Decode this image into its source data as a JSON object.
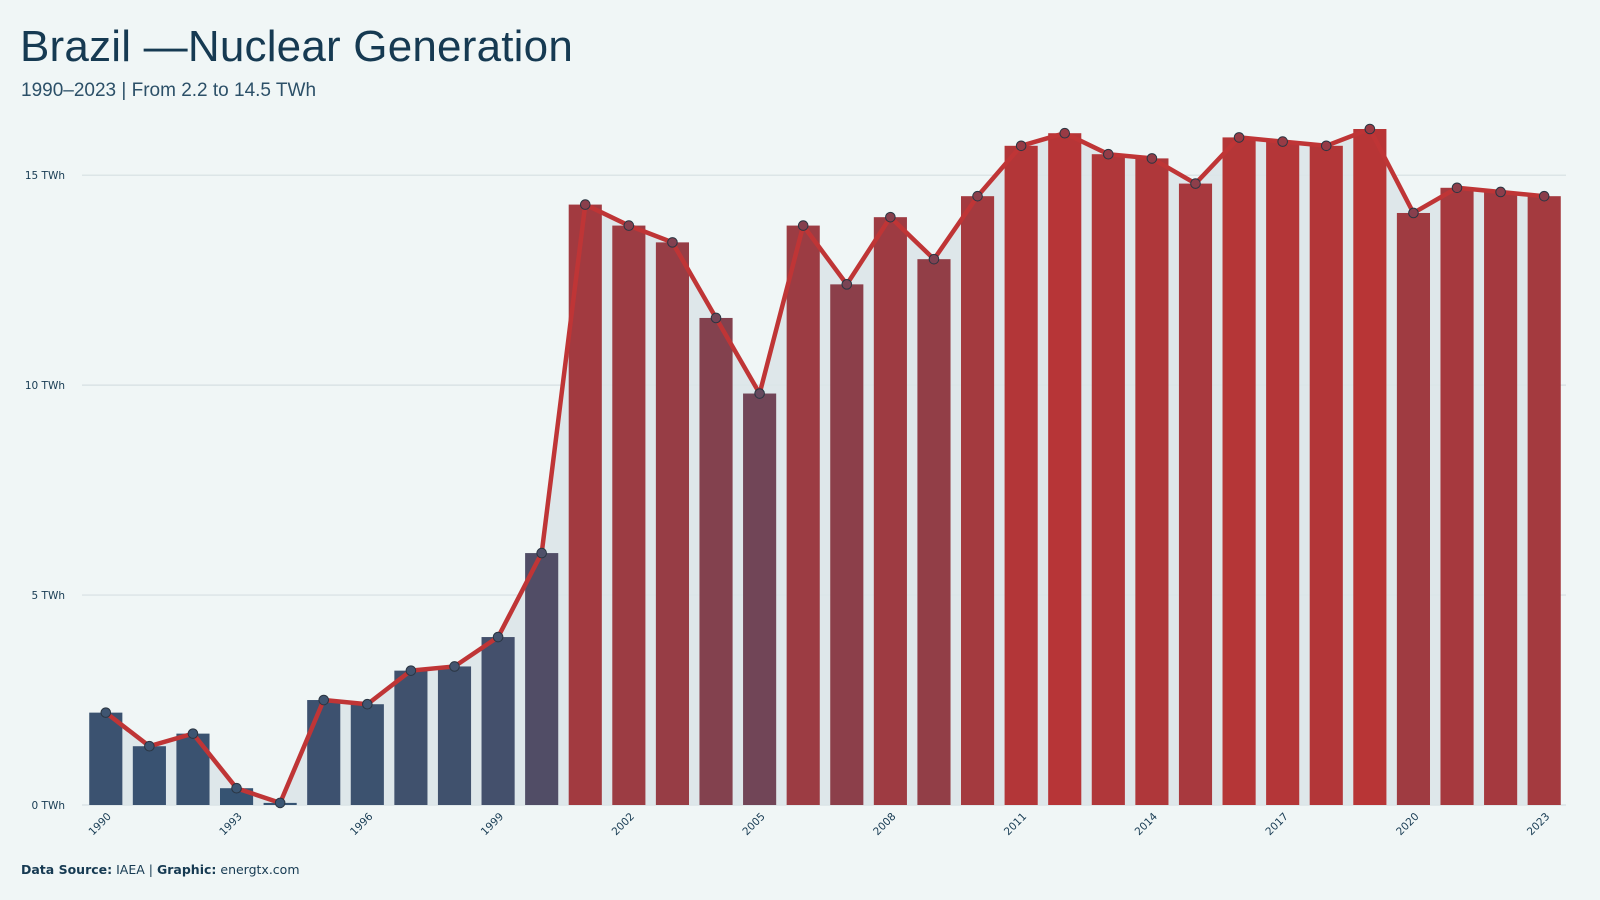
{
  "header": {
    "title": "Brazil —Nuclear Generation",
    "subtitle": "1990–2023 | From 2.2 to 14.5 TWh"
  },
  "footer": {
    "source_label": "Data Source:",
    "source_value": "IAEA",
    "separator": "|",
    "graphic_label": "Graphic:",
    "graphic_value": "energtx.com"
  },
  "colors": {
    "background": "#f0f6f6",
    "area_fill": "#dbe6e9",
    "line": "#bf3536",
    "low_bar": "#365372",
    "high_bar": "#b83536",
    "grid": "#d6dfe2",
    "text": "#163a52"
  },
  "chart_data": {
    "type": "bar",
    "title": "Brazil —Nuclear Generation",
    "subtitle": "1990–2023 | From 2.2 to 14.5 TWh",
    "unit": "TWh",
    "ylim": [
      0,
      15.6
    ],
    "yticks": [
      0,
      5,
      10,
      15
    ],
    "ytick_labels": [
      "0 TWh",
      "5 TWh",
      "10 TWh",
      "15 TWh"
    ],
    "xtick_labels": [
      "1990",
      "1993",
      "1996",
      "1999",
      "2002",
      "2005",
      "2008",
      "2011",
      "2014",
      "2017",
      "2020",
      "2023"
    ],
    "grid": true,
    "overlay": "line with markers and shaded area",
    "categories": [
      1990,
      1991,
      1992,
      1993,
      1994,
      1995,
      1996,
      1997,
      1998,
      1999,
      2000,
      2001,
      2002,
      2003,
      2004,
      2005,
      2006,
      2007,
      2008,
      2009,
      2010,
      2011,
      2012,
      2013,
      2014,
      2015,
      2016,
      2017,
      2018,
      2019,
      2020,
      2021,
      2022,
      2023
    ],
    "values": [
      2.2,
      1.4,
      1.7,
      0.4,
      0.05,
      2.5,
      2.4,
      3.2,
      3.3,
      4.0,
      6.0,
      14.3,
      13.8,
      13.4,
      11.6,
      9.8,
      13.8,
      12.4,
      14.0,
      13.0,
      14.5,
      15.7,
      16.0,
      15.5,
      15.4,
      14.8,
      15.9,
      15.8,
      15.7,
      16.1,
      14.1,
      14.7,
      14.6,
      14.5
    ]
  }
}
